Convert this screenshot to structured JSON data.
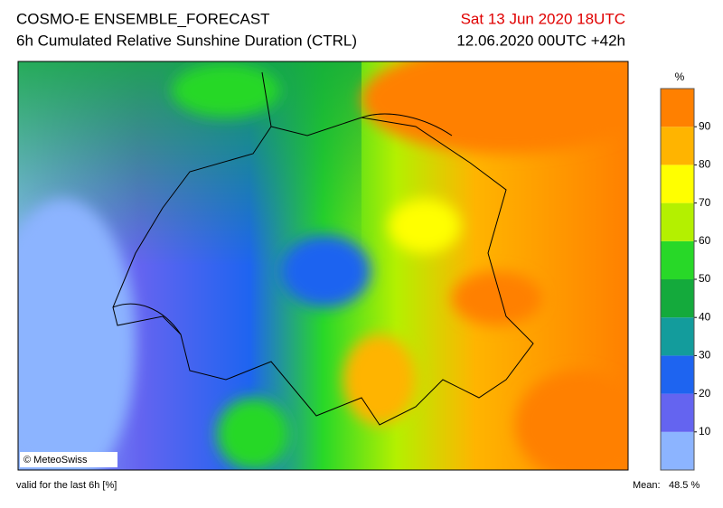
{
  "header": {
    "title": "COSMO-E ENSEMBLE_FORECAST",
    "subtitle": "6h Cumulated Relative Sunshine Duration (CTRL)",
    "valid_time": "Sat 13 Jun 2020 18UTC",
    "run": "12.06.2020 00UTC +42h"
  },
  "legend": {
    "unit": "%",
    "ticks": [
      10,
      20,
      30,
      40,
      50,
      60,
      70,
      80,
      90
    ],
    "colors": [
      "#8cb4ff",
      "#6464f0",
      "#1e64f0",
      "#139c9c",
      "#14aa3c",
      "#28d828",
      "#b4f000",
      "#ffff00",
      "#ffb400",
      "#ff8000"
    ]
  },
  "map": {
    "credit": "© MeteoSwiss"
  },
  "footer": {
    "note": "valid for the last 6h [%]",
    "mean_label": "Mean:",
    "mean_value": "48.5 %"
  }
}
